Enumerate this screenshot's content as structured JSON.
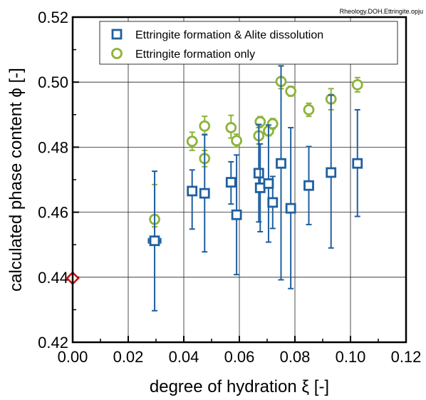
{
  "source_note": "Rheology.DOH.Ettringite.opju",
  "chart_data": {
    "type": "scatter",
    "xlabel": "degree of hydration ξ [-]",
    "ylabel": "calculated phase content ϕ [-]",
    "xlim": [
      0.0,
      0.12
    ],
    "ylim": [
      0.42,
      0.52
    ],
    "xticks": [
      "0.00",
      "0.02",
      "0.04",
      "0.06",
      "0.08",
      "0.10",
      "0.12"
    ],
    "yticks": [
      "0.42",
      "0.44",
      "0.46",
      "0.48",
      "0.50",
      "0.52"
    ],
    "grid": true,
    "legend_position": "top-right",
    "series": [
      {
        "name": "Ettringite formation & Alite dissolution",
        "marker": "square",
        "color": "#1f5fa0",
        "points": [
          {
            "x": 0.0295,
            "y": 0.4512,
            "ylo": 0.4297,
            "yhi": 0.4726,
            "xerr": 0.0022
          },
          {
            "x": 0.043,
            "y": 0.4665,
            "ylo": 0.4548,
            "yhi": 0.473
          },
          {
            "x": 0.0475,
            "y": 0.4658,
            "ylo": 0.4478,
            "yhi": 0.4838
          },
          {
            "x": 0.057,
            "y": 0.4692,
            "ylo": 0.4625,
            "yhi": 0.4755
          },
          {
            "x": 0.059,
            "y": 0.4592,
            "ylo": 0.4408,
            "yhi": 0.4776
          },
          {
            "x": 0.067,
            "y": 0.472,
            "ylo": 0.457,
            "yhi": 0.487
          },
          {
            "x": 0.0675,
            "y": 0.4675,
            "ylo": 0.454,
            "yhi": 0.481
          },
          {
            "x": 0.0705,
            "y": 0.4688,
            "ylo": 0.4508,
            "yhi": 0.4868
          },
          {
            "x": 0.072,
            "y": 0.463,
            "ylo": 0.455,
            "yhi": 0.471
          },
          {
            "x": 0.075,
            "y": 0.475,
            "ylo": 0.4392,
            "yhi": 0.505
          },
          {
            "x": 0.0785,
            "y": 0.4612,
            "ylo": 0.4365,
            "yhi": 0.486
          },
          {
            "x": 0.085,
            "y": 0.4682,
            "ylo": 0.4562,
            "yhi": 0.4802
          },
          {
            "x": 0.093,
            "y": 0.4722,
            "ylo": 0.449,
            "yhi": 0.496
          },
          {
            "x": 0.1025,
            "y": 0.475,
            "ylo": 0.4587,
            "yhi": 0.4915
          }
        ]
      },
      {
        "name": "Ettringite formation only",
        "marker": "circle",
        "color": "#8db33a",
        "points": [
          {
            "x": 0.0295,
            "y": 0.4578,
            "ylo": 0.4555,
            "yhi": 0.4685
          },
          {
            "x": 0.043,
            "y": 0.4818,
            "ylo": 0.479,
            "yhi": 0.4846
          },
          {
            "x": 0.0475,
            "y": 0.4865,
            "ylo": 0.484,
            "yhi": 0.4895
          },
          {
            "x": 0.0475,
            "y": 0.4765,
            "ylo": 0.474,
            "yhi": 0.479
          },
          {
            "x": 0.057,
            "y": 0.486,
            "ylo": 0.4828,
            "yhi": 0.4898
          },
          {
            "x": 0.059,
            "y": 0.482,
            "ylo": 0.48,
            "yhi": 0.484
          },
          {
            "x": 0.067,
            "y": 0.4835,
            "ylo": 0.481,
            "yhi": 0.486
          },
          {
            "x": 0.0675,
            "y": 0.4878,
            "ylo": 0.4862,
            "yhi": 0.4894
          },
          {
            "x": 0.0705,
            "y": 0.485,
            "ylo": 0.4835,
            "yhi": 0.4865
          },
          {
            "x": 0.072,
            "y": 0.4872,
            "ylo": 0.4856,
            "yhi": 0.4888
          },
          {
            "x": 0.075,
            "y": 0.5002,
            "ylo": 0.498,
            "yhi": 0.505
          },
          {
            "x": 0.0785,
            "y": 0.4972,
            "ylo": 0.4957,
            "yhi": 0.4987
          },
          {
            "x": 0.085,
            "y": 0.4915,
            "ylo": 0.4895,
            "yhi": 0.4935
          },
          {
            "x": 0.093,
            "y": 0.4948,
            "ylo": 0.4915,
            "yhi": 0.498
          },
          {
            "x": 0.1025,
            "y": 0.4992,
            "ylo": 0.497,
            "yhi": 0.5014
          }
        ]
      },
      {
        "name": "",
        "marker": "diamond",
        "color": "#cc1111",
        "points": [
          {
            "x": 0.0,
            "y": 0.4397
          }
        ]
      }
    ]
  }
}
